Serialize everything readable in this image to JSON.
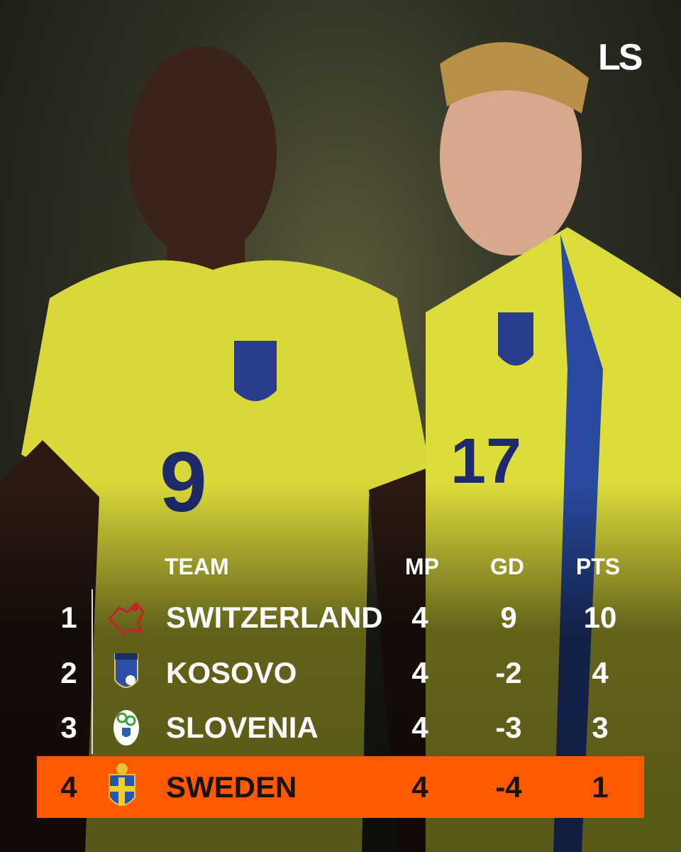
{
  "brand": {
    "logo": "LS",
    "accent": "#ff5a00"
  },
  "table": {
    "headers": {
      "team": "TEAM",
      "mp": "MP",
      "gd": "GD",
      "pts": "PTS"
    },
    "rows": [
      {
        "rank": "1",
        "team": "SWITZERLAND",
        "mp": "4",
        "gd": "9",
        "pts": "10",
        "crest": "switzerland-crest"
      },
      {
        "rank": "2",
        "team": "KOSOVO",
        "mp": "4",
        "gd": "-2",
        "pts": "4",
        "crest": "kosovo-crest"
      },
      {
        "rank": "3",
        "team": "SLOVENIA",
        "mp": "4",
        "gd": "-3",
        "pts": "3",
        "crest": "slovenia-crest"
      },
      {
        "rank": "4",
        "team": "SWEDEN",
        "mp": "4",
        "gd": "-4",
        "pts": "1",
        "crest": "sweden-crest",
        "highlighted": true
      }
    ]
  }
}
